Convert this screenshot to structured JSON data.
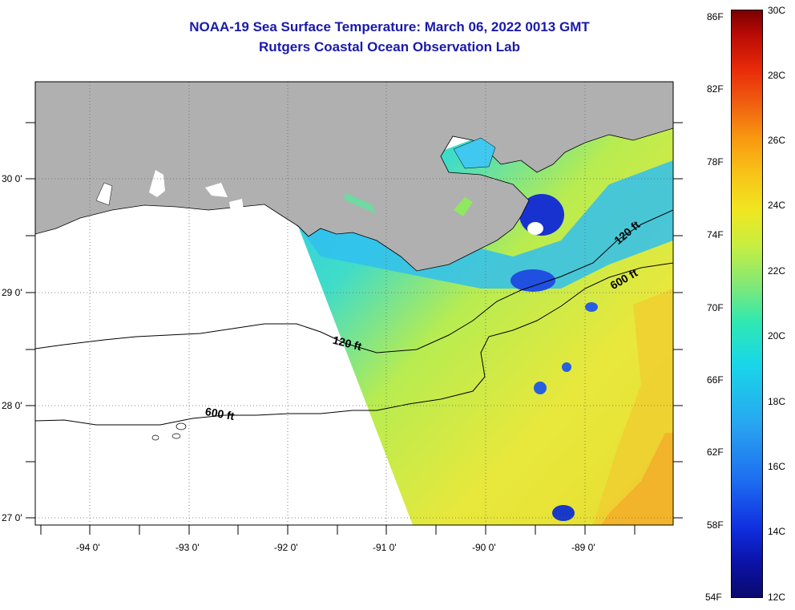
{
  "title": {
    "line1": "NOAA-19 Sea Surface Temperature:  March 06, 2022 0013 GMT",
    "line2": "Rutgers Coastal Ocean Observation Lab"
  },
  "map": {
    "lon_labels": [
      "-94 0'",
      "-93 0'",
      "-92 0'",
      "-91 0'",
      "-90 0'",
      "-89 0'"
    ],
    "lat_labels": [
      "30 0'",
      "29 0'",
      "28 0'",
      "27 0'"
    ],
    "contours": {
      "shelf_120": "120 ft",
      "shelf_600": "600 ft",
      "east_120": "120 ft",
      "east_600": "600 ft"
    },
    "colors": {
      "land": "#b0b0b0",
      "no_data": "#ffffff",
      "grid": "#555555"
    }
  },
  "colorbar": {
    "fahrenheit_labels": [
      "86F",
      "82F",
      "78F",
      "74F",
      "70F",
      "66F",
      "62F",
      "58F",
      "54F"
    ],
    "celsius_labels": [
      "30C",
      "28C",
      "26C",
      "24C",
      "22C",
      "20C",
      "18C",
      "16C",
      "14C",
      "12C"
    ]
  }
}
